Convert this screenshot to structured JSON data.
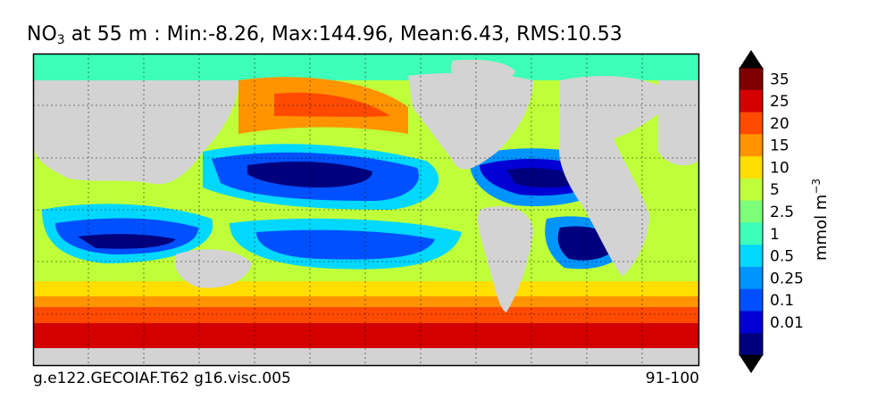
{
  "title": {
    "var_main": "NO",
    "var_sub": "3",
    "rest": " at 55 m : Min:-8.26, Max:144.96, Mean:6.43, RMS:10.53"
  },
  "footer": {
    "left": "g.e122.GECOIAF.T62 g16.visc.005",
    "right": "91-100"
  },
  "units": {
    "base": "mmol m",
    "exp": "−3"
  },
  "colorbar": {
    "labels": [
      "35",
      "25",
      "20",
      "15",
      "10",
      "5",
      "2.5",
      "1",
      "0.5",
      "0.25",
      "0.1",
      "0.01"
    ],
    "colors": [
      "#7f0000",
      "#d40000",
      "#ff4a00",
      "#ff9400",
      "#ffde00",
      "#bfff3a",
      "#7dff7a",
      "#3dffb9",
      "#00d8ff",
      "#0094ff",
      "#0050ff",
      "#0000d4",
      "#00007f"
    ]
  }
}
